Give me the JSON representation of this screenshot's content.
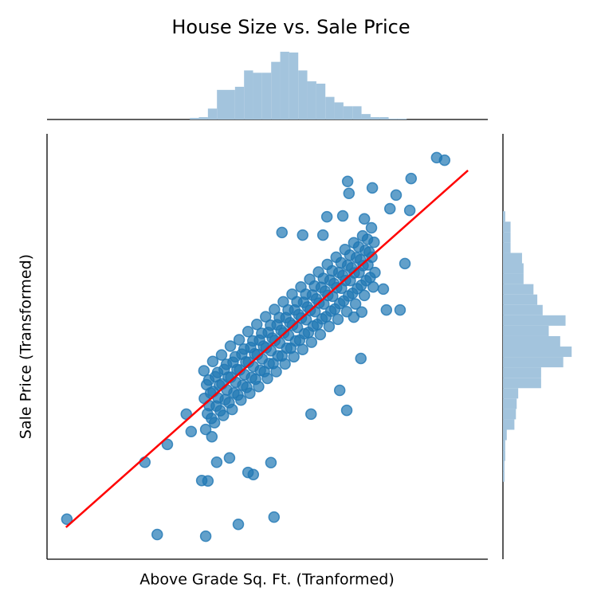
{
  "chart_data": {
    "type": "scatter",
    "title": "House Size vs. Sale Price",
    "x_label": "Above Grade Sq. Ft. (Tranformed)",
    "y_label": "Sale Price (Transformed)",
    "color": "#1f77b4",
    "xlim": [
      0,
      100
    ],
    "ylim": [
      0,
      100
    ],
    "x": [
      4.5,
      25.0,
      36.0,
      43.4,
      51.5,
      88.4,
      90.2,
      82.6,
      68.2,
      68.5,
      73.8,
      79.2,
      77.8,
      82.3,
      53.3,
      81.2,
      80.1,
      77.0,
      71.4,
      35.1,
      36.5,
      46.8,
      45.6,
      50.8,
      38.5,
      41.4,
      22.2,
      27.3,
      32.7,
      31.6,
      37.4,
      68.0,
      59.9,
      66.4,
      71.2,
      69.6,
      76.3,
      72.0,
      67.1,
      63.5,
      58.0,
      62.6,
      36,
      36.4,
      35.7,
      36.2,
      35.6,
      38,
      38.4,
      37.7,
      38.2,
      37.6,
      40,
      40.4,
      39.7,
      40.2,
      39.6,
      42,
      42.4,
      41.7,
      42.2,
      41.6,
      44,
      44.4,
      43.7,
      44.2,
      43.6,
      46,
      46.4,
      45.7,
      46.2,
      45.6,
      48,
      48.4,
      47.7,
      48.2,
      47.6,
      50,
      50.4,
      49.7,
      50.2,
      49.6,
      52,
      52.4,
      51.7,
      52.2,
      51.6,
      54,
      54.4,
      53.7,
      54.2,
      53.6,
      56,
      56.4,
      55.7,
      56.2,
      55.6,
      58,
      58.4,
      57.7,
      58.2,
      57.6,
      60,
      60.4,
      59.7,
      60.2,
      59.6,
      62,
      62.4,
      61.7,
      62.2,
      61.6,
      64,
      64.4,
      63.7,
      64.2,
      63.6,
      66,
      66.4,
      65.7,
      66.2,
      65.6,
      68,
      68.4,
      67.7,
      68.2,
      67.6,
      70,
      70.4,
      69.7,
      70.2,
      69.6,
      72,
      72.4,
      71.7,
      72.2,
      71.6,
      74,
      74.4,
      73.7,
      74.2,
      73.6,
      37.3,
      36.8,
      37.1,
      36.7,
      39.3,
      38.8,
      39.1,
      38.7,
      41.3,
      40.8,
      41.1,
      40.7,
      43.3,
      42.8,
      43.1,
      42.7,
      45.3,
      44.8,
      45.1,
      44.7,
      47.3,
      46.8,
      47.1,
      46.7,
      49.3,
      48.8,
      49.1,
      48.7,
      51.3,
      50.8,
      51.1,
      50.7,
      53.3,
      52.8,
      53.1,
      52.7,
      55.3,
      54.8,
      55.1,
      54.7,
      57.3,
      56.8,
      57.1,
      56.7,
      59.3,
      58.8,
      59.1,
      58.7,
      61.3,
      60.8,
      61.1,
      60.7,
      63.3,
      62.8,
      63.1,
      62.7,
      65.3,
      64.8,
      65.1,
      64.7,
      67.3,
      66.8,
      67.1,
      66.7,
      69.3,
      68.8,
      69.1,
      68.7,
      71.3,
      70.8,
      71.1,
      70.7,
      73.3,
      72.8,
      73.1,
      72.7
    ],
    "y": [
      9.4,
      5.8,
      5.4,
      8.2,
      9.9,
      94.4,
      93.8,
      89.5,
      88.8,
      86.0,
      87.3,
      85.6,
      82.4,
      82.0,
      76.8,
      69.5,
      58.6,
      58.6,
      58.1,
      18.5,
      18.4,
      19.9,
      20.4,
      22.7,
      22.8,
      23.8,
      22.8,
      27.0,
      30.0,
      34.1,
      28.8,
      35.0,
      34.1,
      39.7,
      47.2,
      56.9,
      63.5,
      80.0,
      80.7,
      80.5,
      76.2,
      76.2,
      30.5,
      34.2,
      37.8,
      41.0,
      44.3,
      32.1,
      36.0,
      39.4,
      42.9,
      46.5,
      33.8,
      37.5,
      41.2,
      44.6,
      48.0,
      35.2,
      39.1,
      42.8,
      46.3,
      50.1,
      37.4,
      40.9,
      44.5,
      48.2,
      51.6,
      39.0,
      42.7,
      46.3,
      49.8,
      53.5,
      40.6,
      44.4,
      48.1,
      51.5,
      55.2,
      42.5,
      46.0,
      49.7,
      53.3,
      57.0,
      44.1,
      47.8,
      51.4,
      55.1,
      58.7,
      45.9,
      49.6,
      53.2,
      56.8,
      60.5,
      47.6,
      51.3,
      55.0,
      58.6,
      62.3,
      49.3,
      53.0,
      56.7,
      60.4,
      64.0,
      51.0,
      54.8,
      58.5,
      62.1,
      65.8,
      52.8,
      56.5,
      60.2,
      63.9,
      67.5,
      54.7,
      58.3,
      62.0,
      65.6,
      69.3,
      56.4,
      60.1,
      63.8,
      67.4,
      71.0,
      58.2,
      61.9,
      65.5,
      69.1,
      72.8,
      60.0,
      63.6,
      67.3,
      70.9,
      74.4,
      62.0,
      65.5,
      69.0,
      72.6,
      76.0,
      64.0,
      67.4,
      71.0,
      74.5,
      77.9,
      33.1,
      36.1,
      39.1,
      42.1,
      34.9,
      37.9,
      40.9,
      43.9,
      36.8,
      39.8,
      42.8,
      45.8,
      38.6,
      41.6,
      44.6,
      47.6,
      40.4,
      43.4,
      46.4,
      49.4,
      42.3,
      45.3,
      48.3,
      51.3,
      44.1,
      47.1,
      50.1,
      53.1,
      46.0,
      49.0,
      52.0,
      55.0,
      47.8,
      50.8,
      53.8,
      56.8,
      49.6,
      52.6,
      55.6,
      58.6,
      51.5,
      54.5,
      57.5,
      60.5,
      53.3,
      56.3,
      59.3,
      62.3,
      55.2,
      58.2,
      61.2,
      64.2,
      57.0,
      60.0,
      63.0,
      66.0,
      58.8,
      61.8,
      64.8,
      67.8,
      60.7,
      63.7,
      66.7,
      69.7,
      62.5,
      65.5,
      68.5,
      71.5,
      64.4,
      67.4,
      70.4,
      73.4,
      66.2,
      69.2,
      72.2,
      75.2
    ],
    "fit_line": {
      "x": [
        4.3,
        95.5
      ],
      "y": [
        7.5,
        91.4
      ],
      "color": "#ff0000"
    },
    "x_hist": {
      "color": "#a3c4dd",
      "ylim": [
        0,
        90
      ],
      "bins": [
        32.4,
        34.45,
        36.5,
        38.55,
        40.6,
        42.65,
        44.7,
        46.75,
        48.8,
        50.85,
        52.9,
        54.95,
        57.0,
        59.05,
        61.1,
        63.15,
        65.2,
        67.25,
        69.3,
        71.35,
        73.4,
        75.45,
        77.5,
        79.55,
        81.6
      ],
      "counts": [
        2,
        3,
        14,
        38,
        38,
        42,
        63,
        60,
        60,
        74,
        87,
        86,
        63,
        49,
        46,
        29,
        22,
        17,
        17,
        7,
        3,
        3,
        1,
        1
      ]
    },
    "y_hist": {
      "color": "#a3c4dd",
      "xlim": [
        0,
        95
      ],
      "bins": [
        18.2,
        20.65,
        23.09,
        25.54,
        27.98,
        30.43,
        32.88,
        35.32,
        37.77,
        40.21,
        42.66,
        45.11,
        47.55,
        50.0,
        52.44,
        54.89,
        57.34,
        59.78,
        62.23,
        64.67,
        67.12,
        69.57,
        72.01,
        74.46,
        76.9,
        79.35,
        81.8
      ],
      "counts": [
        2,
        2,
        3,
        3,
        5,
        15,
        17,
        18,
        20,
        50,
        50,
        79,
        90,
        75,
        60,
        82,
        52,
        45,
        40,
        27,
        27,
        25,
        10,
        10,
        10,
        3
      ]
    }
  }
}
